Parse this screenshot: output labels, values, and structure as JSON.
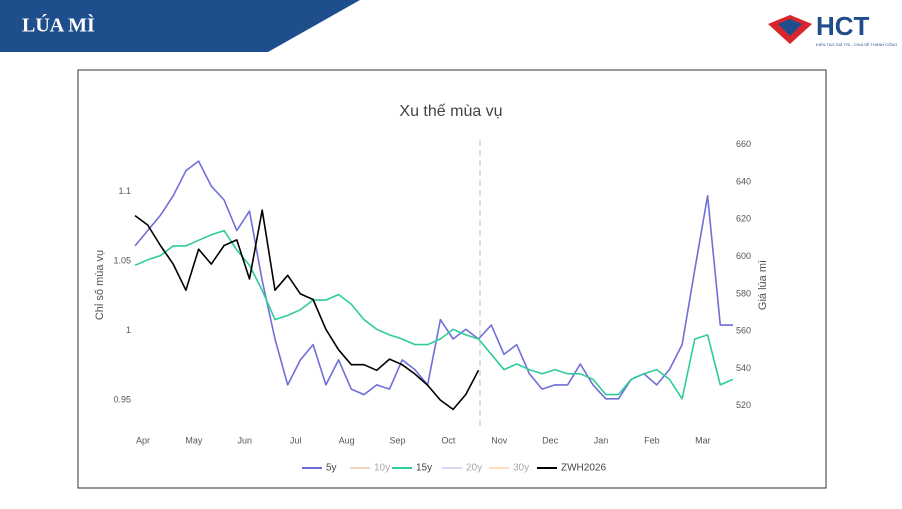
{
  "header": {
    "title": "LÚA MÌ",
    "logo_text": "HCT",
    "logo_tagline": "KIẾN TẠO GIÁ TRỊ - CHIA SẺ THÀNH CÔNG"
  },
  "chart_data": {
    "type": "line",
    "title": "Xu thế mùa vụ",
    "y_label": "Chỉ số mùa vụ",
    "y2_label": "Giá lúa mì",
    "legend": "bottom",
    "grid": false,
    "categories": [
      "Apr",
      null,
      null,
      null,
      "May",
      null,
      null,
      null,
      "Jun",
      null,
      null,
      null,
      "Jul",
      null,
      null,
      null,
      "Aug",
      null,
      null,
      null,
      "Sep",
      null,
      null,
      null,
      "Oct",
      null,
      null,
      null,
      "Nov",
      null,
      null,
      null,
      "Dec",
      null,
      null,
      null,
      "Jan",
      null,
      null,
      null,
      "Feb",
      null,
      null,
      null,
      "Mar",
      null,
      null,
      null
    ],
    "ylim": [
      0.93,
      1.135
    ],
    "yticks": [
      0.95,
      1,
      1.05,
      1.1
    ],
    "y2lim": [
      508,
      661
    ],
    "y2ticks": [
      520,
      540,
      560,
      580,
      600,
      620,
      640,
      660
    ],
    "series": [
      {
        "name": "5y",
        "color": "#6f6fd8",
        "visible": true,
        "values": [
          1.061,
          1.072,
          1.083,
          1.097,
          1.115,
          1.122,
          1.104,
          1.094,
          1.072,
          1.086,
          1.036,
          0.994,
          0.961,
          0.979,
          0.99,
          0.961,
          0.979,
          0.958,
          0.954,
          0.961,
          0.958,
          0.979,
          0.972,
          0.961,
          1.008,
          0.994,
          1.001,
          0.994,
          1.004,
          0.983,
          0.99,
          0.969,
          0.958,
          0.961,
          0.961,
          0.976,
          0.961,
          0.951,
          0.951,
          0.965,
          0.969,
          0.961,
          0.972,
          0.99,
          1.044,
          1.097,
          1.004,
          1.004
        ]
      },
      {
        "name": "10y",
        "color": "#f4a582",
        "visible": false,
        "values": [
          null,
          null,
          null,
          null,
          null,
          null,
          null,
          null,
          null,
          null,
          null,
          null,
          null,
          null,
          null,
          null,
          null,
          null,
          null,
          null,
          null,
          null,
          null,
          null,
          null,
          null,
          null,
          null,
          null,
          null,
          null,
          null,
          null,
          null,
          null,
          null,
          null,
          null,
          null,
          null,
          null,
          null,
          null,
          null,
          null,
          null,
          null,
          null
        ]
      },
      {
        "name": "15y",
        "color": "#2ecc9a",
        "visible": true,
        "values": [
          1.047,
          1.051,
          1.054,
          1.061,
          1.061,
          1.065,
          1.069,
          1.072,
          1.058,
          1.047,
          1.029,
          1.008,
          1.011,
          1.015,
          1.022,
          1.022,
          1.026,
          1.019,
          1.008,
          1.001,
          0.997,
          0.994,
          0.99,
          0.99,
          0.994,
          1.001,
          0.997,
          0.994,
          0.983,
          0.972,
          0.976,
          0.972,
          0.969,
          0.972,
          0.969,
          0.969,
          0.965,
          0.954,
          0.954,
          0.965,
          0.969,
          0.972,
          0.965,
          0.951,
          0.994,
          0.997,
          0.961,
          0.965
        ]
      },
      {
        "name": "20y",
        "color": "#b6a8e6",
        "visible": false,
        "values": [
          null,
          null,
          null,
          null,
          null,
          null,
          null,
          null,
          null,
          null,
          null,
          null,
          null,
          null,
          null,
          null,
          null,
          null,
          null,
          null,
          null,
          null,
          null,
          null,
          null,
          null,
          null,
          null,
          null,
          null,
          null,
          null,
          null,
          null,
          null,
          null,
          null,
          null,
          null,
          null,
          null,
          null,
          null,
          null,
          null,
          null,
          null,
          null
        ]
      },
      {
        "name": "30y",
        "color": "#ffc07a",
        "visible": false,
        "values": [
          null,
          null,
          null,
          null,
          null,
          null,
          null,
          null,
          null,
          null,
          null,
          null,
          null,
          null,
          null,
          null,
          null,
          null,
          null,
          null,
          null,
          null,
          null,
          null,
          null,
          null,
          null,
          null,
          null,
          null,
          null,
          null,
          null,
          null,
          null,
          null,
          null,
          null,
          null,
          null,
          null,
          null,
          null,
          null,
          null,
          null,
          null,
          null
        ]
      },
      {
        "name": "ZWH2026",
        "color": "#000000",
        "visible": true,
        "axis": "y2",
        "values": [
          622,
          617,
          606,
          596,
          582,
          604,
          596,
          606,
          609,
          588,
          625,
          582,
          590,
          580,
          577,
          561,
          550,
          542,
          542,
          539,
          545,
          542,
          537,
          531,
          523,
          518,
          526,
          539,
          null,
          null,
          null,
          null,
          null,
          null,
          null,
          null,
          null,
          null,
          null,
          null,
          null,
          null,
          null,
          null,
          null,
          null,
          null,
          null
        ]
      }
    ]
  }
}
